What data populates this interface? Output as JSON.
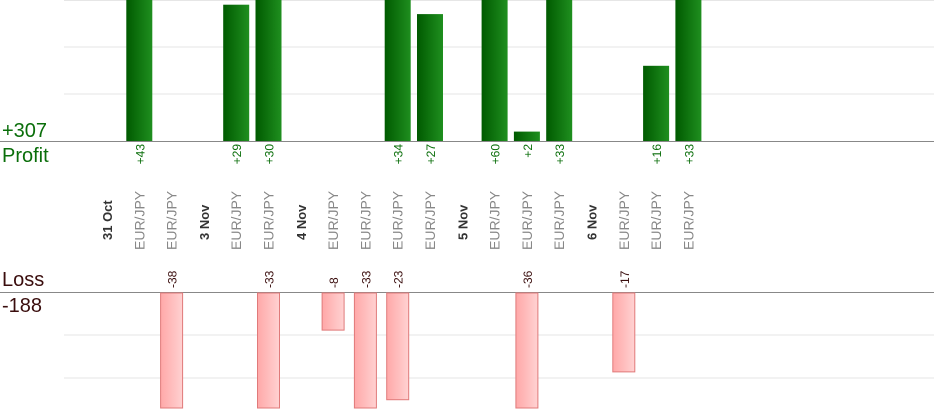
{
  "summary": {
    "profit_total": "+307",
    "profit_label": "Profit",
    "loss_label": "Loss",
    "loss_total": "-188"
  },
  "colors": {
    "profit_bar_dark": "#005a00",
    "profit_bar_light": "#1f8f1f",
    "profit_text": "#0a6e0a",
    "loss_bar_fill": "#ffb3b3",
    "loss_bar_stroke": "#e07a7a",
    "loss_text": "#3a0d0d",
    "axis": "#888888",
    "grid": "#e6e6e6",
    "category_text": "#888888",
    "date_text": "#333333"
  },
  "chart_data": {
    "type": "bar",
    "categories": [
      "31 Oct",
      "EUR/JPY",
      "EUR/JPY",
      "3 Nov",
      "EUR/JPY",
      "EUR/JPY",
      "4 Nov",
      "EUR/JPY",
      "EUR/JPY",
      "EUR/JPY",
      "EUR/JPY",
      "5 Nov",
      "EUR/JPY",
      "EUR/JPY",
      "EUR/JPY",
      "6 Nov",
      "EUR/JPY",
      "EUR/JPY",
      "EUR/JPY"
    ],
    "date_separators": [
      "31 Oct",
      "3 Nov",
      "4 Nov",
      "5 Nov",
      "6 Nov"
    ],
    "series": [
      {
        "name": "Profit",
        "values": [
          null,
          43,
          null,
          null,
          29,
          30,
          null,
          null,
          null,
          34,
          27,
          null,
          60,
          2,
          33,
          null,
          null,
          16,
          33
        ],
        "labels": [
          null,
          "+43",
          null,
          null,
          "+29",
          "+30",
          null,
          null,
          null,
          "+34",
          "+27",
          null,
          "+60",
          "+2",
          "+33",
          null,
          null,
          "+16",
          "+33"
        ]
      },
      {
        "name": "Loss",
        "values": [
          null,
          null,
          -38,
          null,
          null,
          -33,
          null,
          -8,
          -33,
          -23,
          null,
          null,
          null,
          -36,
          null,
          null,
          -17,
          null,
          null
        ],
        "labels": [
          null,
          null,
          "-38",
          null,
          null,
          "-33",
          null,
          "-8",
          "-33",
          "-23",
          null,
          null,
          null,
          "-36",
          null,
          null,
          "-17",
          null,
          null
        ]
      }
    ],
    "profit_ylim": [
      0,
      30
    ],
    "loss_ylim": [
      -25,
      0
    ],
    "grid": true
  }
}
